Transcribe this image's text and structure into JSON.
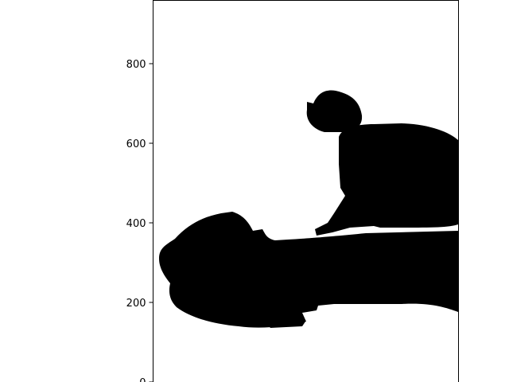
{
  "chart_data": {
    "type": "scatter",
    "title": "",
    "xlabel": "",
    "ylabel": "",
    "ylim": [
      0,
      960
    ],
    "y_ticks": [
      {
        "value": 800,
        "label": "800"
      },
      {
        "value": 600,
        "label": "600"
      },
      {
        "value": 400,
        "label": "400"
      },
      {
        "value": 200,
        "label": "200"
      },
      {
        "value": 0,
        "label": "0"
      }
    ],
    "x_ticks_visible": false,
    "grid": false,
    "marker_color": "#000000"
  }
}
